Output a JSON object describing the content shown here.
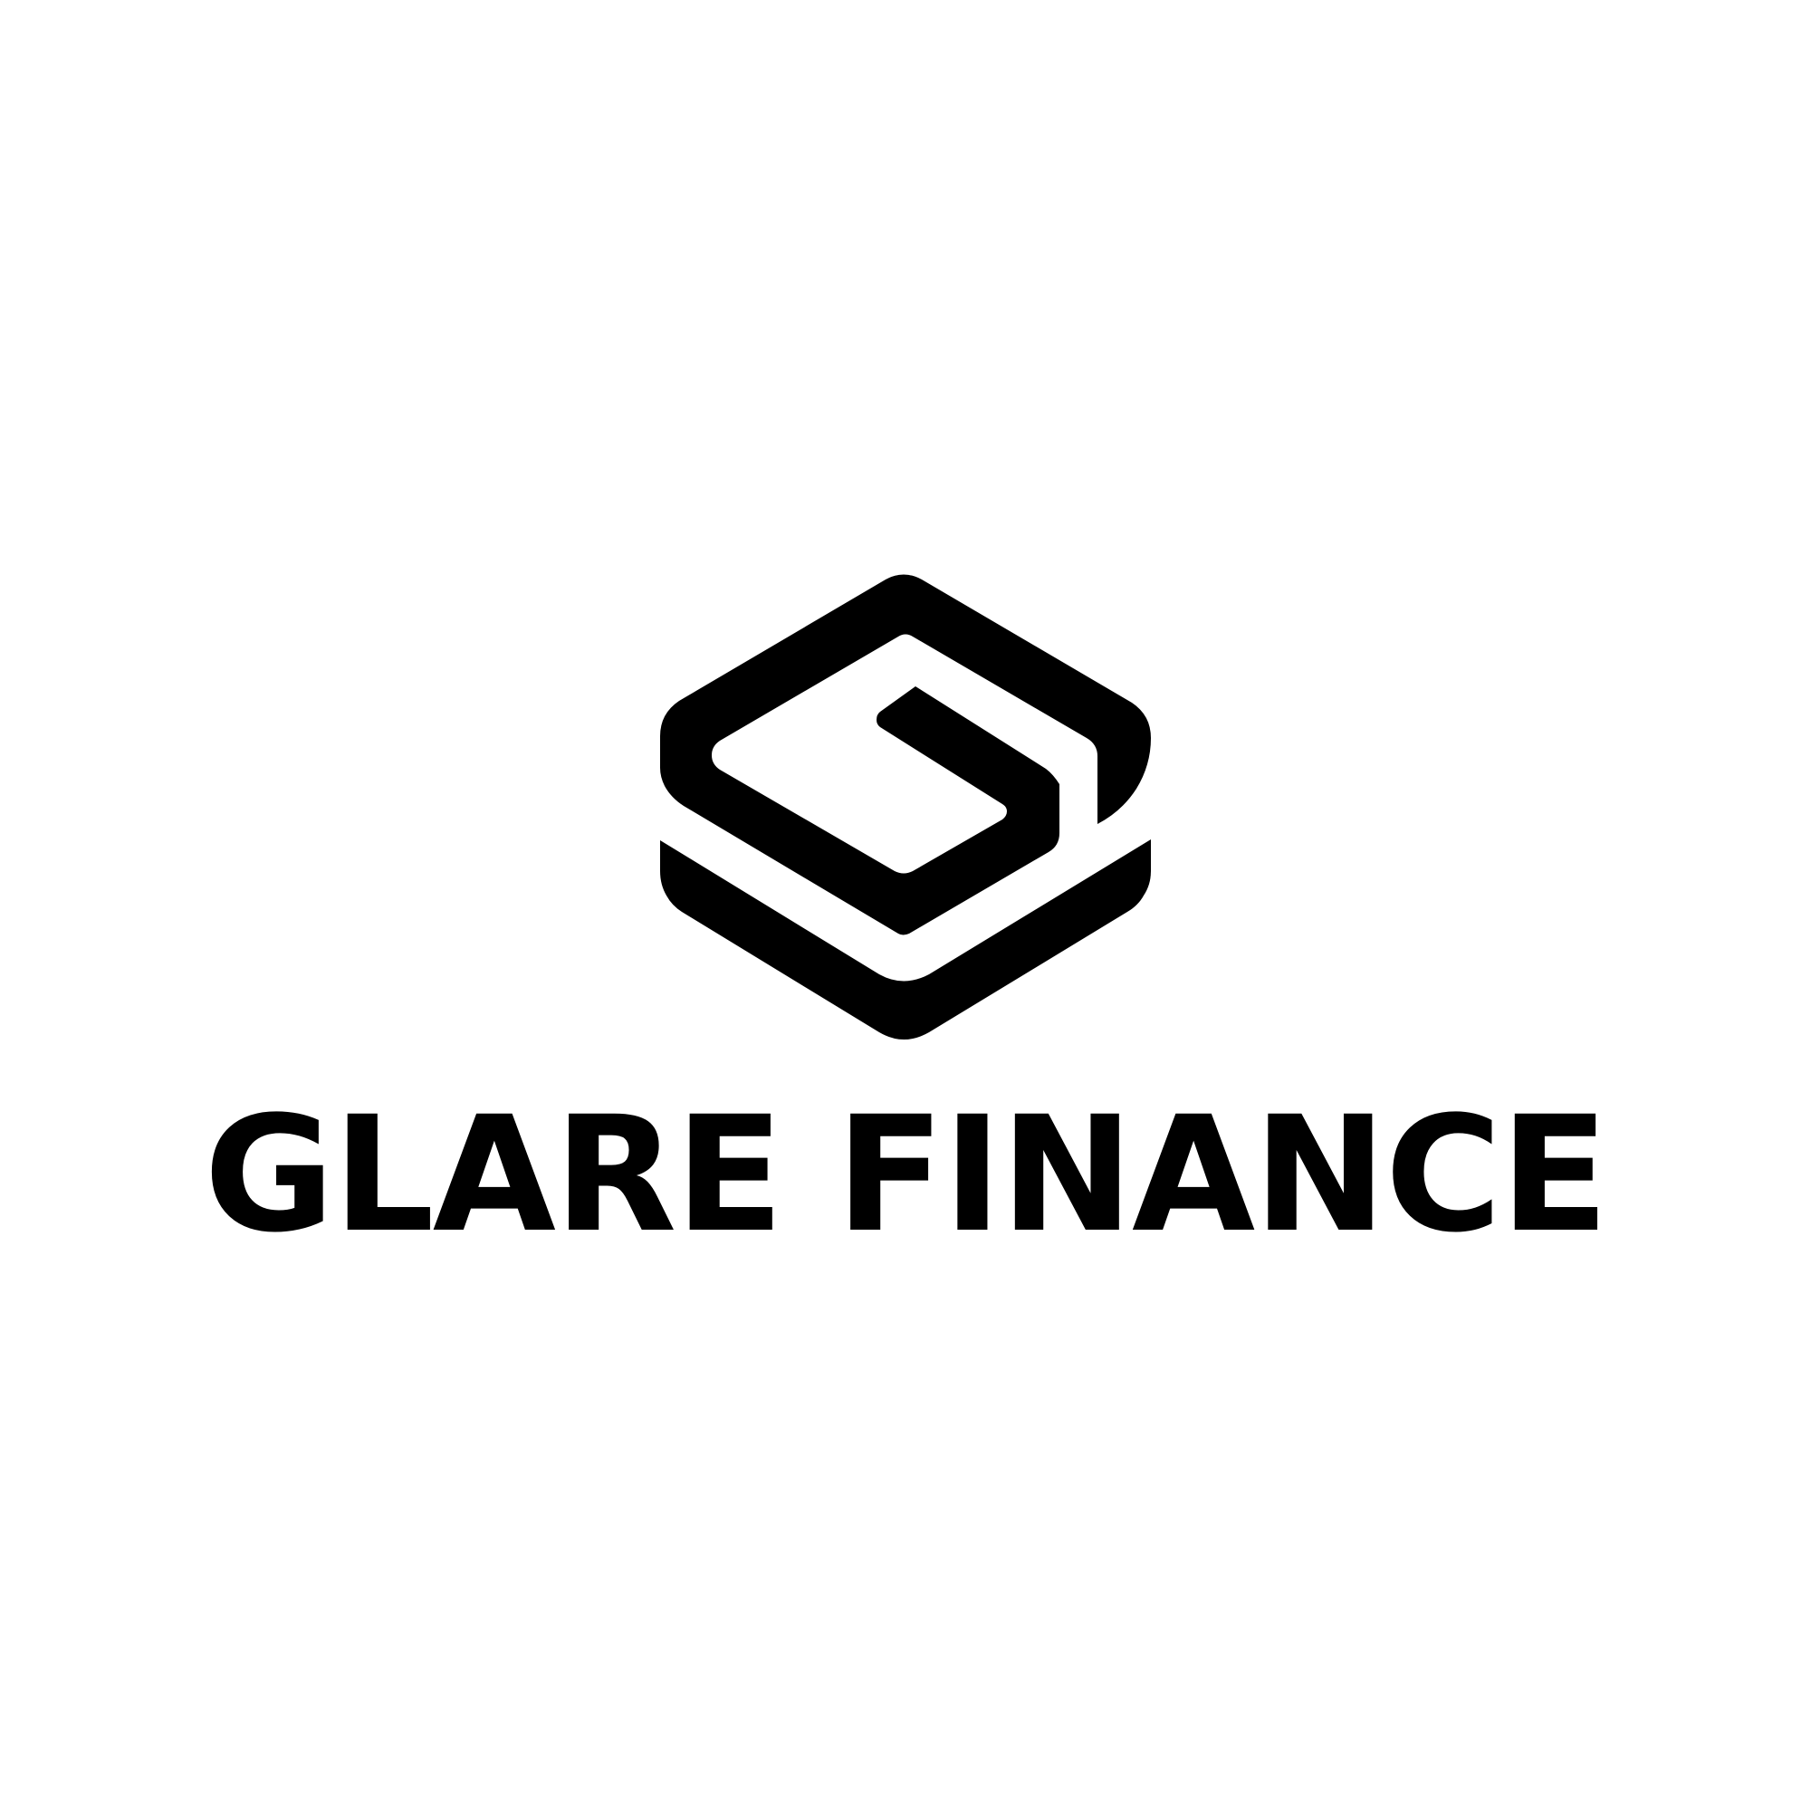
{
  "brand": {
    "name": "GLARE FINANCE",
    "colors": {
      "mark": "#000000",
      "text": "#000000",
      "background": "#ffffff"
    }
  },
  "logo": {
    "icon": "hexagon-g-monogram-icon"
  }
}
